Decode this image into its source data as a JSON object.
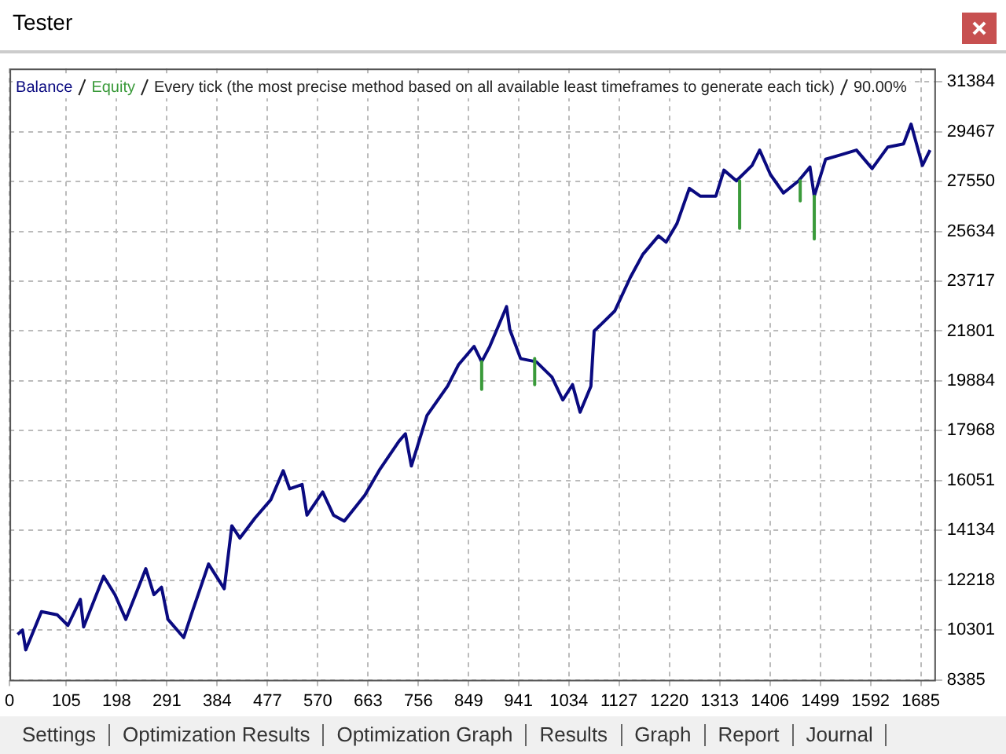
{
  "chart_data": {
    "type": "line",
    "title": "Tester",
    "annotations": [
      "Every tick (the most precise method based on all available least timeframes to generate each tick)",
      "90.00%",
      "Settings",
      "Optimization Results",
      "Optimization Graph",
      "Results",
      "Graph",
      "Report",
      "Journal"
    ],
    "xlim": [
      0,
      1710
    ],
    "xticks": [
      0,
      105,
      198,
      291,
      384,
      477,
      570,
      663,
      756,
      849,
      941,
      1034,
      1127,
      1220,
      1313,
      1406,
      1499,
      1592,
      1685
    ],
    "ylim": [
      8385,
      31900
    ],
    "yticks": [
      8385,
      10301,
      12218,
      14134,
      16051,
      17968,
      19884,
      21801,
      23717,
      25634,
      27550,
      29467,
      31384
    ],
    "grid": true,
    "legend": "top left",
    "marker": "none",
    "line_style": "solid",
    "series": [
      {
        "name": "Equity",
        "color": "#3a9a3a",
        "x": [
          873,
          873,
          900,
          971,
          971,
          1000,
          1350,
          1350,
          1400,
          1462,
          1462,
          1470,
          1488,
          1488
        ],
        "values": [
          20620,
          19560,
          null,
          20740,
          19740,
          null,
          27580,
          25750,
          null,
          27580,
          26810,
          null,
          26990,
          25340
        ]
      },
      {
        "name": "Balance",
        "color": "#0a0a80",
        "x": [
          15,
          24,
          30,
          59,
          88,
          108,
          131,
          137,
          174,
          195,
          215,
          252,
          267,
          281,
          293,
          322,
          339,
          368,
          397,
          411,
          426,
          454,
          483,
          506,
          518,
          541,
          550,
          579,
          599,
          619,
          657,
          685,
          720,
          732,
          743,
          772,
          810,
          830,
          859,
          873,
          888,
          919,
          925,
          945,
          974,
          1003,
          1023,
          1041,
          1055,
          1075,
          1081,
          1119,
          1148,
          1171,
          1200,
          1214,
          1234,
          1257,
          1277,
          1306,
          1321,
          1344,
          1373,
          1387,
          1407,
          1431,
          1459,
          1480,
          1488,
          1509,
          1537,
          1566,
          1595,
          1624,
          1653,
          1667,
          1688,
          1702
        ],
        "values": [
          10130,
          10300,
          9540,
          11010,
          10890,
          10480,
          11480,
          10420,
          12370,
          11660,
          10710,
          12660,
          11660,
          11950,
          10710,
          10010,
          11070,
          12840,
          11890,
          14310,
          13840,
          14610,
          15310,
          16430,
          15730,
          15900,
          14720,
          15610,
          14720,
          14490,
          15490,
          16490,
          17560,
          17850,
          16610,
          18560,
          19680,
          20500,
          21210,
          20620,
          21210,
          22740,
          21860,
          20740,
          20620,
          20030,
          19150,
          19740,
          18680,
          19680,
          21800,
          22570,
          23870,
          24750,
          25460,
          25220,
          25930,
          27290,
          26990,
          26990,
          27990,
          27580,
          28170,
          28760,
          27820,
          27110,
          27580,
          28110,
          26990,
          28410,
          28580,
          28760,
          28050,
          28880,
          29000,
          29760,
          28170,
          28760
        ]
      }
    ]
  }
}
